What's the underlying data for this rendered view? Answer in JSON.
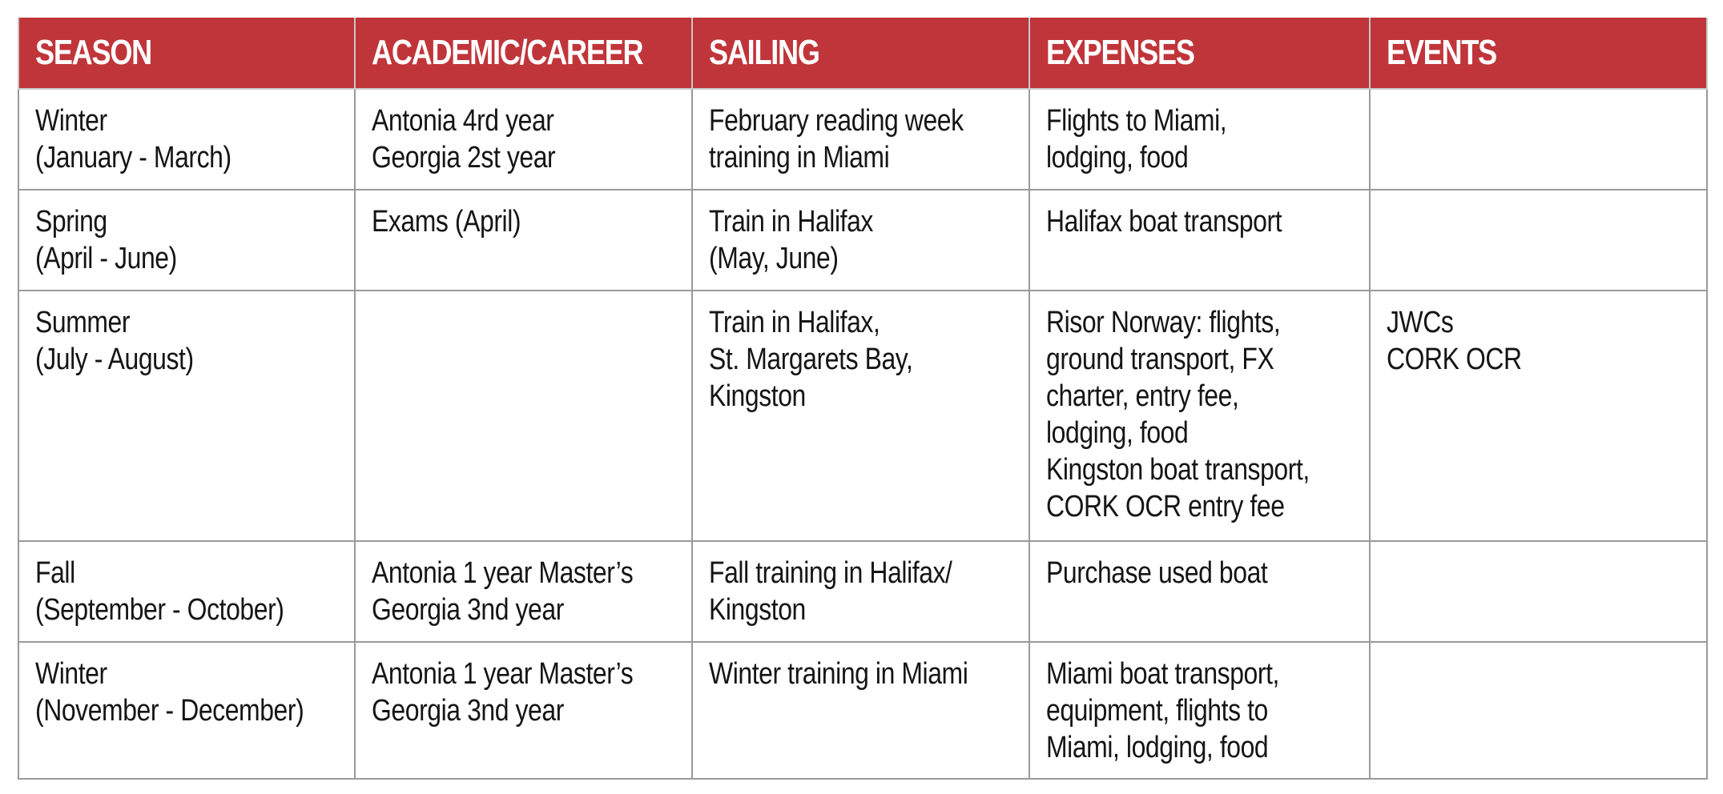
{
  "colors": {
    "header_bg": "#c0353a",
    "header_text": "#ffffff",
    "grid": "#9a9a9a",
    "body_text": "#151515"
  },
  "table": {
    "headers": [
      "SEASON",
      "ACADEMIC/CAREER",
      "SAILING",
      "EXPENSES",
      "EVENTS"
    ],
    "rows": [
      {
        "season": [
          "Winter",
          "(January - March)"
        ],
        "academic": [
          "Antonia 4rd year",
          "Georgia 2st year"
        ],
        "sailing": [
          "February reading week",
          "training in Miami"
        ],
        "expenses": [
          "Flights to Miami,",
          "lodging, food"
        ],
        "events": []
      },
      {
        "season": [
          "Spring",
          "(April - June)"
        ],
        "academic": [
          "Exams (April)"
        ],
        "sailing": [
          "Train in Halifax",
          "(May, June)"
        ],
        "expenses": [
          "Halifax boat transport"
        ],
        "events": []
      },
      {
        "season": [
          "Summer",
          "(July - August)"
        ],
        "academic": [],
        "sailing": [
          "Train in Halifax,",
          "St. Margarets Bay,",
          "Kingston"
        ],
        "expenses": [
          "Risor Norway: flights,",
          "ground transport, FX",
          "charter, entry fee,",
          "lodging, food",
          "Kingston boat transport,",
          "CORK OCR entry fee"
        ],
        "events": [
          "JWCs",
          "CORK OCR"
        ]
      },
      {
        "season": [
          "Fall",
          "(September - October)"
        ],
        "academic": [
          "Antonia 1 year Master’s",
          "Georgia 3nd year"
        ],
        "sailing": [
          "Fall training in Halifax/",
          "Kingston"
        ],
        "expenses": [
          "Purchase used boat"
        ],
        "events": []
      },
      {
        "season": [
          "Winter",
          "(November - December)"
        ],
        "academic": [
          "Antonia 1 year Master’s",
          "Georgia 3nd year"
        ],
        "sailing": [
          "Winter training in Miami"
        ],
        "expenses": [
          "Miami boat transport,",
          "equipment, flights to",
          "Miami, lodging, food"
        ],
        "events": []
      }
    ]
  }
}
